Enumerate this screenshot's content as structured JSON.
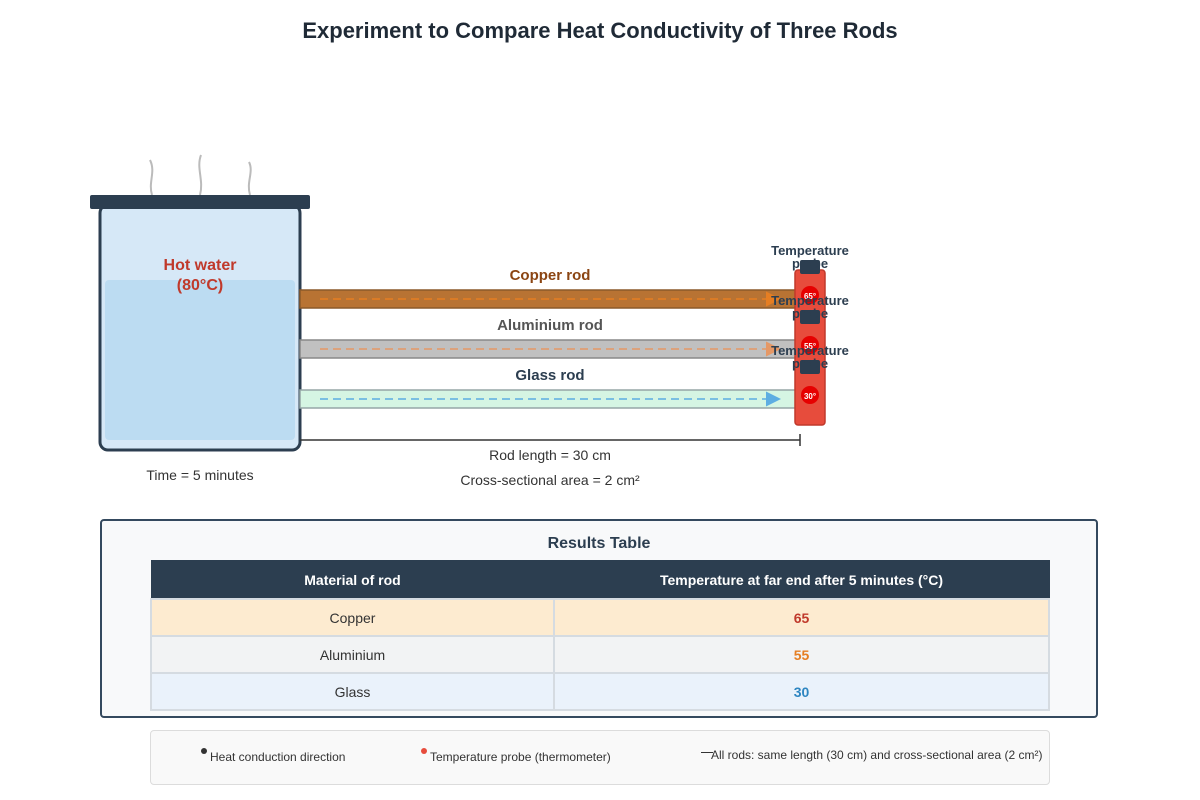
{
  "title": "Experiment to Compare Heat Conductivity of Three Rods",
  "beaker": {
    "label_line1": "Hot water",
    "label_line2": "(80°C)",
    "time_label": "Time = 5 minutes"
  },
  "rods": [
    {
      "label": "Copper rod",
      "probe_reading": "65°",
      "probe_label_line1": "Temperature",
      "probe_label_line2": "probe",
      "fill": "#b87333",
      "label_color": "#8b4513",
      "arrow_color": "#e67e22"
    },
    {
      "label": "Aluminium rod",
      "probe_reading": "55°",
      "probe_label_line1": "Temperature",
      "probe_label_line2": "probe",
      "fill": "#c0c0c0",
      "label_color": "#555555",
      "arrow_color": "#e59866"
    },
    {
      "label": "Glass rod",
      "probe_reading": "30°",
      "probe_label_line1": "Temperature",
      "probe_label_line2": "probe",
      "fill": "#d5f5e3",
      "label_color": "#2c3e50",
      "arrow_color": "#5dade2"
    }
  ],
  "dimensions": {
    "length_label": "Rod length = 30 cm",
    "area_label": "Cross-sectional area = 2 cm²"
  },
  "results": {
    "title": "Results Table",
    "headers": [
      "Material of rod",
      "Temperature at far end after 5 minutes (°C)"
    ],
    "rows": [
      {
        "material": "Copper",
        "temp": "65",
        "bg": "#fdebd0",
        "temp_color": "#c0392b"
      },
      {
        "material": "Aluminium",
        "temp": "55",
        "bg": "#f2f3f4",
        "temp_color": "#e67e22"
      },
      {
        "material": "Glass",
        "temp": "30",
        "bg": "#eaf2fb",
        "temp_color": "#2e86c1"
      }
    ]
  },
  "legend": {
    "heat_direction": "Heat conduction direction",
    "probe": "Temperature probe (thermometer)",
    "same_dims": "All rods: same length (30 cm) and cross-sectional area (2 cm²)"
  },
  "colors": {
    "water": "#bcdcf2",
    "beaker_fill": "#d6e8f7",
    "beaker_outline": "#2c3e50",
    "probe_body": "#e74c3c",
    "probe_dot": "#e60000",
    "hot_water_label": "#c0392b"
  }
}
